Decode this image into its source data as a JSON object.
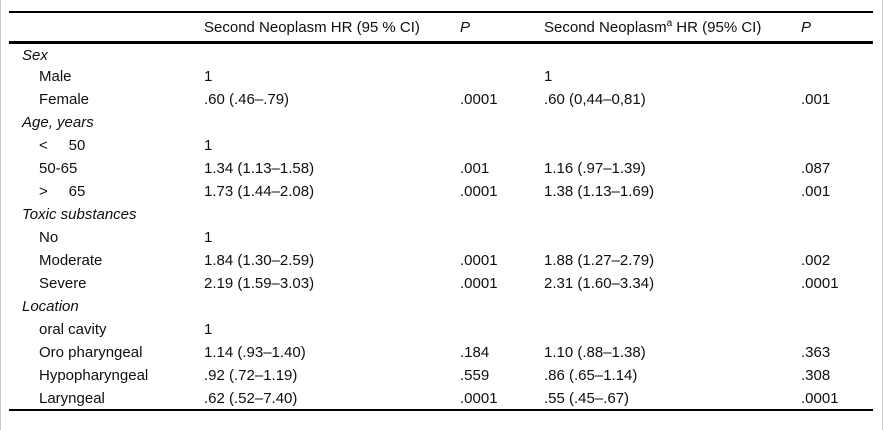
{
  "colors": {
    "rule_color": "#000000",
    "edge_color": "#c9c9c9",
    "text_color": "#0f0f0f",
    "bg_color": "#ffffff"
  },
  "table": {
    "header": {
      "label": "",
      "hr1": "Second Neoplasm HR (95 % CI)",
      "p1": "P",
      "hr2_base": "Second Neoplasm",
      "hr2_sup": "a",
      "hr2_rest": " HR (95% CI)",
      "p2": "P"
    },
    "rows": [
      {
        "label": "Sex",
        "hr1": "",
        "p1": "",
        "hr2": "",
        "p2": ""
      },
      {
        "label": "Male",
        "hr1": "1",
        "p1": "",
        "hr2": "1",
        "p2": ""
      },
      {
        "label": "Female",
        "hr1": ".60 (.46–.79)",
        "p1": ".0001",
        "hr2": ".60 (0,44–0,81)",
        "p2": ".001"
      },
      {
        "label": "Age, years",
        "hr1": "",
        "p1": "",
        "hr2": "",
        "p2": ""
      },
      {
        "label": "<     50",
        "hr1": "1",
        "p1": "",
        "hr2": "",
        "p2": ""
      },
      {
        "label": "50-65",
        "hr1": "1.34 (1.13–1.58)",
        "p1": ".001",
        "hr2": "1.16 (.97–1.39)",
        "p2": ".087"
      },
      {
        "label": ">     65",
        "hr1": "1.73 (1.44–2.08)",
        "p1": ".0001",
        "hr2": "1.38 (1.13–1.69)",
        "p2": ".001"
      },
      {
        "label": "Toxic substances",
        "hr1": "",
        "p1": "",
        "hr2": "",
        "p2": ""
      },
      {
        "label": "No",
        "hr1": "1",
        "p1": "",
        "hr2": "",
        "p2": ""
      },
      {
        "label": "Moderate",
        "hr1": "1.84 (1.30–2.59)",
        "p1": ".0001",
        "hr2": "1.88 (1.27–2.79)",
        "p2": ".002"
      },
      {
        "label": "Severe",
        "hr1": "2.19 (1.59–3.03)",
        "p1": ".0001",
        "hr2": "2.31 (1.60–3.34)",
        "p2": ".0001"
      },
      {
        "label": "Location",
        "hr1": "",
        "p1": "",
        "hr2": "",
        "p2": ""
      },
      {
        "label": "oral cavity",
        "hr1": "1",
        "p1": "",
        "hr2": "",
        "p2": ""
      },
      {
        "label": "Oro pharyngeal",
        "hr1": "1.14 (.93–1.40)",
        "p1": ".184",
        "hr2": "1.10 (.88–1.38)",
        "p2": ".363"
      },
      {
        "label": "Hypopharyngeal",
        "hr1": ".92 (.72–1.19)",
        "p1": ".559",
        "hr2": ".86 (.65–1.14)",
        "p2": ".308"
      },
      {
        "label": "Laryngeal",
        "hr1": ".62 (.52–7.40)",
        "p1": ".0001",
        "hr2": ".55 (.45–.67)",
        "p2": ".0001"
      }
    ]
  }
}
